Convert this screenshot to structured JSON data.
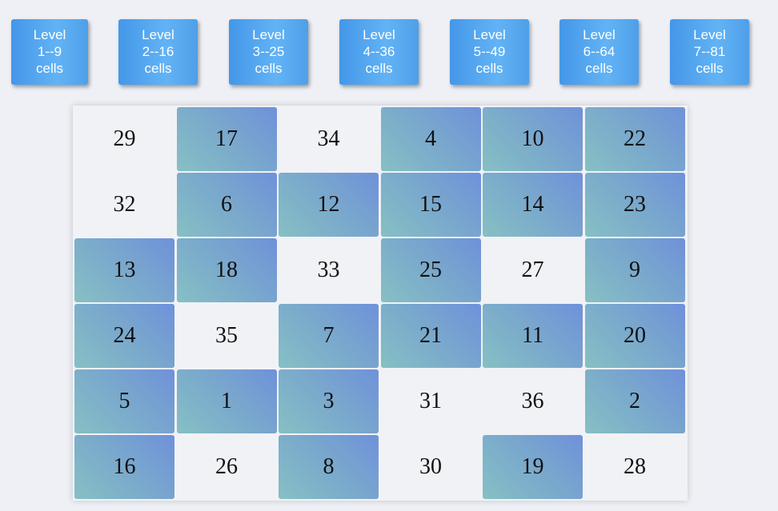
{
  "levels": [
    {
      "line1": "Level",
      "line2": "1--9",
      "line3": "cells"
    },
    {
      "line1": "Level",
      "line2": "2--16",
      "line3": "cells"
    },
    {
      "line1": "Level",
      "line2": "3--25",
      "line3": "cells"
    },
    {
      "line1": "Level",
      "line2": "4--36",
      "line3": "cells"
    },
    {
      "line1": "Level",
      "line2": "5--49",
      "line3": "cells"
    },
    {
      "line1": "Level",
      "line2": "6--64",
      "line3": "cells"
    },
    {
      "line1": "Level",
      "line2": "7--81",
      "line3": "cells"
    }
  ],
  "board": {
    "rows": [
      [
        {
          "n": "29",
          "tinted": false
        },
        {
          "n": "17",
          "tinted": true
        },
        {
          "n": "34",
          "tinted": false
        },
        {
          "n": "4",
          "tinted": true
        },
        {
          "n": "10",
          "tinted": true
        },
        {
          "n": "22",
          "tinted": true
        }
      ],
      [
        {
          "n": "32",
          "tinted": false
        },
        {
          "n": "6",
          "tinted": true
        },
        {
          "n": "12",
          "tinted": true
        },
        {
          "n": "15",
          "tinted": true
        },
        {
          "n": "14",
          "tinted": true
        },
        {
          "n": "23",
          "tinted": true
        }
      ],
      [
        {
          "n": "13",
          "tinted": true
        },
        {
          "n": "18",
          "tinted": true
        },
        {
          "n": "33",
          "tinted": false
        },
        {
          "n": "25",
          "tinted": true
        },
        {
          "n": "27",
          "tinted": false
        },
        {
          "n": "9",
          "tinted": true
        }
      ],
      [
        {
          "n": "24",
          "tinted": true
        },
        {
          "n": "35",
          "tinted": false
        },
        {
          "n": "7",
          "tinted": true
        },
        {
          "n": "21",
          "tinted": true
        },
        {
          "n": "11",
          "tinted": true
        },
        {
          "n": "20",
          "tinted": true
        }
      ],
      [
        {
          "n": "5",
          "tinted": true
        },
        {
          "n": "1",
          "tinted": true
        },
        {
          "n": "3",
          "tinted": true
        },
        {
          "n": "31",
          "tinted": false
        },
        {
          "n": "36",
          "tinted": false
        },
        {
          "n": "2",
          "tinted": true
        }
      ],
      [
        {
          "n": "16",
          "tinted": true
        },
        {
          "n": "26",
          "tinted": false
        },
        {
          "n": "8",
          "tinted": true
        },
        {
          "n": "30",
          "tinted": false
        },
        {
          "n": "19",
          "tinted": true
        },
        {
          "n": "28",
          "tinted": false
        }
      ]
    ]
  },
  "colors": {
    "button_accent": "#4e9fe9",
    "tile_tint": "#7aa9cc",
    "background": "#eef0f5"
  }
}
